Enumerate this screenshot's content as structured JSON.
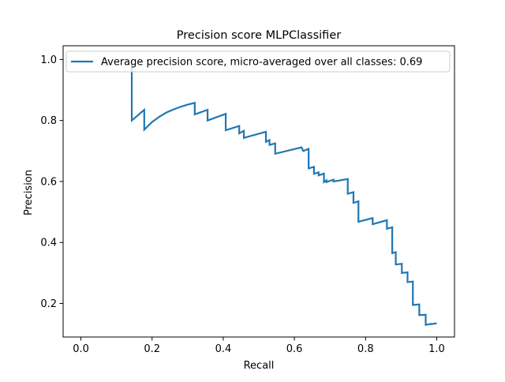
{
  "chart_data": {
    "type": "line",
    "title": "Precision score MLPClassifier",
    "xlabel": "Recall",
    "ylabel": "Precision",
    "xlim": [
      -0.05,
      1.05
    ],
    "ylim": [
      0.09,
      1.045
    ],
    "xticks": [
      0.0,
      0.2,
      0.4,
      0.6,
      0.8,
      1.0
    ],
    "xtick_labels": [
      "0.0",
      "0.2",
      "0.4",
      "0.6",
      "0.8",
      "1.0"
    ],
    "yticks": [
      0.2,
      0.4,
      0.6,
      0.8,
      1.0
    ],
    "ytick_labels": [
      "0.2",
      "0.4",
      "0.6",
      "0.8",
      "1.0"
    ],
    "grid": false,
    "legend_position": "top-left",
    "series": [
      {
        "name": "Average precision score, micro-averaged over all classes: 0.69",
        "color": "#1f77b4",
        "x": [
          0.143,
          0.143,
          0.143,
          0.178,
          0.178,
          0.2,
          0.22,
          0.24,
          0.26,
          0.28,
          0.3,
          0.32,
          0.32,
          0.356,
          0.356,
          0.407,
          0.407,
          0.445,
          0.445,
          0.458,
          0.458,
          0.52,
          0.52,
          0.53,
          0.53,
          0.546,
          0.546,
          0.62,
          0.625,
          0.64,
          0.64,
          0.655,
          0.655,
          0.668,
          0.668,
          0.683,
          0.683,
          0.69,
          0.69,
          0.71,
          0.71,
          0.75,
          0.75,
          0.766,
          0.766,
          0.78,
          0.78,
          0.82,
          0.82,
          0.86,
          0.86,
          0.875,
          0.875,
          0.885,
          0.885,
          0.902,
          0.902,
          0.918,
          0.918,
          0.933,
          0.933,
          0.951,
          0.951,
          0.969,
          0.969,
          0.984,
          0.984,
          1.0
        ],
        "y": [
          1.0,
          0.97,
          0.8,
          0.835,
          0.77,
          0.795,
          0.812,
          0.826,
          0.836,
          0.845,
          0.852,
          0.858,
          0.82,
          0.835,
          0.8,
          0.822,
          0.768,
          0.782,
          0.758,
          0.766,
          0.743,
          0.763,
          0.73,
          0.736,
          0.72,
          0.725,
          0.691,
          0.712,
          0.7,
          0.707,
          0.643,
          0.648,
          0.625,
          0.63,
          0.62,
          0.626,
          0.598,
          0.604,
          0.598,
          0.606,
          0.6,
          0.608,
          0.56,
          0.565,
          0.53,
          0.535,
          0.468,
          0.48,
          0.46,
          0.473,
          0.445,
          0.45,
          0.365,
          0.368,
          0.328,
          0.33,
          0.3,
          0.302,
          0.27,
          0.272,
          0.195,
          0.197,
          0.162,
          0.163,
          0.13,
          0.133,
          0.132,
          0.135
        ]
      }
    ]
  }
}
